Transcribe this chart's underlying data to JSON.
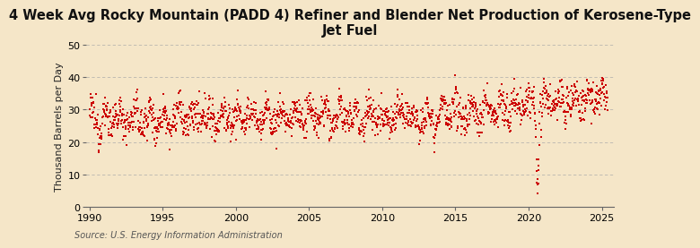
{
  "title": "4 Week Avg Rocky Mountain (PADD 4) Refiner and Blender Net Production of Kerosene-Type\nJet Fuel",
  "ylabel": "Thousand Barrels per Day",
  "source": "Source: U.S. Energy Information Administration",
  "line_color": "#cc0000",
  "background_color": "#f5e6c8",
  "plot_bg_color": "#f5e6c8",
  "ylim": [
    0,
    50
  ],
  "xlim": [
    1989.8,
    2025.8
  ],
  "yticks": [
    0,
    10,
    20,
    30,
    40,
    50
  ],
  "xticks": [
    1990,
    1995,
    2000,
    2005,
    2010,
    2015,
    2020,
    2025
  ],
  "grid_color": "#aaaaaa",
  "title_fontsize": 10.5,
  "ylabel_fontsize": 8,
  "source_fontsize": 7,
  "marker_size": 1.8
}
